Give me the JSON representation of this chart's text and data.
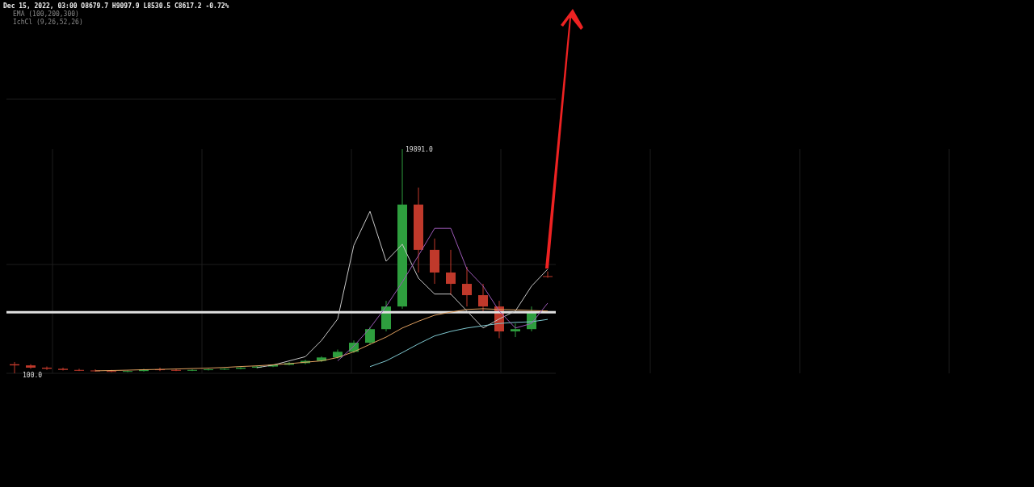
{
  "chart_data": {
    "type": "candlestick",
    "categories": [
      null,
      null,
      null,
      null,
      null,
      null,
      null,
      null,
      null,
      null,
      null,
      null,
      null,
      null,
      null,
      null,
      null,
      null,
      null,
      null,
      null,
      null,
      null,
      null,
      null,
      null,
      null,
      null,
      null,
      null,
      null,
      null,
      null,
      null
    ],
    "ohlc": [
      [
        900,
        1100,
        100,
        800
      ],
      [
        800,
        900,
        500,
        600
      ],
      [
        600,
        700,
        400,
        500
      ],
      [
        500,
        600,
        350,
        400
      ],
      [
        400,
        500,
        300,
        350
      ],
      [
        350,
        450,
        250,
        300
      ],
      [
        300,
        400,
        200,
        250
      ],
      [
        250,
        350,
        200,
        300
      ],
      [
        300,
        500,
        250,
        450
      ],
      [
        450,
        600,
        300,
        400
      ],
      [
        400,
        500,
        300,
        350
      ],
      [
        350,
        450,
        300,
        400
      ],
      [
        400,
        500,
        350,
        450
      ],
      [
        450,
        550,
        400,
        500
      ],
      [
        500,
        650,
        450,
        600
      ],
      [
        600,
        750,
        550,
        700
      ],
      [
        700,
        900,
        650,
        850
      ],
      [
        850,
        1100,
        800,
        1000
      ],
      [
        1000,
        1300,
        900,
        1200
      ],
      [
        1200,
        1600,
        1100,
        1500
      ],
      [
        1500,
        2200,
        1400,
        2000
      ],
      [
        2000,
        3000,
        1900,
        2800
      ],
      [
        2800,
        4200,
        2600,
        4000
      ],
      [
        4000,
        6500,
        3800,
        6000
      ],
      [
        6000,
        19891,
        5800,
        15000
      ],
      [
        15000,
        16500,
        9000,
        11000
      ],
      [
        11000,
        12000,
        8000,
        9000
      ],
      [
        9000,
        11000,
        7000,
        8000
      ],
      [
        8000,
        9500,
        6000,
        7000
      ],
      [
        7000,
        8000,
        5500,
        6000
      ],
      [
        6000,
        6500,
        3200,
        3800
      ],
      [
        3800,
        4500,
        3300,
        4000
      ],
      [
        4000,
        6000,
        3800,
        5500
      ],
      [
        8679.7,
        9097.9,
        8530.5,
        8617.2
      ]
    ],
    "colors": [
      "#c0392b",
      "#c0392b",
      "#c0392b",
      "#c0392b",
      "#c0392b",
      "#c0392b",
      "#c0392b",
      "#2e9e3e",
      "#2e9e3e",
      "#c0392b",
      "#c0392b",
      "#2e9e3e",
      "#2e9e3e",
      "#2e9e3e",
      "#2e9e3e",
      "#2e9e3e",
      "#2e9e3e",
      "#2e9e3e",
      "#2e9e3e",
      "#2e9e3e",
      "#2e9e3e",
      "#2e9e3e",
      "#2e9e3e",
      "#2e9e3e",
      "#2e9e3e",
      "#c0392b",
      "#c0392b",
      "#c0392b",
      "#c0392b",
      "#c0392b",
      "#c0392b",
      "#2e9e3e",
      "#2e9e3e",
      "#c0392b"
    ],
    "series": [
      {
        "type": "line",
        "color": "#c8c8c8",
        "values": [
          null,
          null,
          null,
          null,
          null,
          null,
          null,
          null,
          null,
          null,
          null,
          null,
          null,
          null,
          null,
          600,
          830,
          1200,
          1570,
          3000,
          4900,
          11400,
          14400,
          10000,
          11500,
          8500,
          7100,
          7100,
          5600,
          4100,
          4900,
          5600,
          7800,
          9300
        ]
      },
      {
        "type": "line",
        "color": "#e0a060",
        "values": [
          null,
          null,
          null,
          null,
          null,
          320,
          350,
          380,
          420,
          450,
          480,
          520,
          560,
          620,
          700,
          760,
          850,
          950,
          1080,
          1200,
          1500,
          2000,
          2660,
          3300,
          4100,
          4700,
          5230,
          5500,
          5740,
          5800,
          5740,
          5700,
          5650,
          5600
        ]
      },
      {
        "type": "line",
        "color": "#7fc8d0",
        "values": [
          null,
          null,
          null,
          null,
          null,
          null,
          null,
          null,
          null,
          null,
          null,
          null,
          null,
          null,
          null,
          null,
          null,
          null,
          null,
          null,
          null,
          null,
          690,
          1200,
          1930,
          2700,
          3400,
          3800,
          4100,
          4300,
          4500,
          4600,
          4650,
          4860
        ]
      },
      {
        "type": "line",
        "color": "#9b59b6",
        "values": [
          null,
          null,
          null,
          null,
          null,
          null,
          null,
          null,
          null,
          null,
          null,
          null,
          null,
          null,
          null,
          null,
          null,
          null,
          null,
          null,
          1200,
          2500,
          4100,
          6000,
          8160,
          10500,
          12900,
          12900,
          9300,
          7800,
          5600,
          4100,
          4500,
          6300
        ]
      }
    ],
    "ref_lines": [
      {
        "axis": "y",
        "value": 5500,
        "color": "#e0e0e0"
      }
    ],
    "grid": true,
    "annotations": [
      "Dec 15, 2022, 03:00  O8679.7  H9097.9  L8530.5  C8617.2  -0.72%",
      "EMA (100,200,300)",
      "IchCl (9,26,52,26)",
      "19891.0",
      "100.0"
    ]
  }
}
